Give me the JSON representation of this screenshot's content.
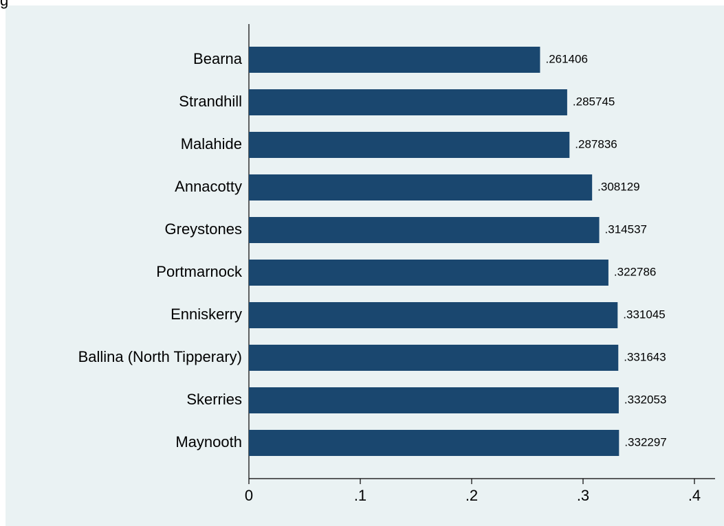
{
  "chart_data": {
    "type": "hbar",
    "title": "g",
    "categories": [
      "Bearna",
      "Strandhill",
      "Malahide",
      "Annacotty",
      "Greystones",
      "Portmarnock",
      "Enniskerry",
      "Ballina (North Tipperary)",
      "Skerries",
      "Maynooth"
    ],
    "values": [
      0.261406,
      0.285745,
      0.287836,
      0.308129,
      0.314537,
      0.322786,
      0.331045,
      0.331643,
      0.332053,
      0.332297
    ],
    "value_labels": [
      ".261406",
      ".285745",
      ".287836",
      ".308129",
      ".314537",
      ".322786",
      ".331045",
      ".331643",
      ".332053",
      ".332297"
    ],
    "color": "#1a476f",
    "xlim": [
      0,
      0.4
    ],
    "xticks": [
      0,
      {
        "value": 0.1,
        "label": ".1"
      },
      {
        "value": 0.2,
        "label": ".2"
      },
      {
        "value": 0.3,
        "label": ".3"
      },
      {
        "value": 0.4,
        "label": ".4"
      }
    ]
  }
}
